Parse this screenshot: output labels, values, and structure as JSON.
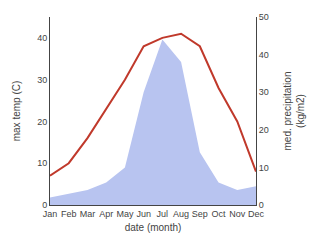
{
  "chart_data": {
    "type": "line",
    "categories": [
      "Jan",
      "Feb",
      "Mar",
      "Apr",
      "May",
      "Jun",
      "Jul",
      "Aug",
      "Sep",
      "Oct",
      "Nov",
      "Dec"
    ],
    "series": [
      {
        "type": "line",
        "color": "#c0392b",
        "values": [
          7,
          10,
          16,
          23,
          30,
          38,
          40,
          41,
          38,
          28,
          20,
          8
        ]
      },
      {
        "type": "area",
        "color": "#b8c4f0",
        "axis": "y2",
        "values": [
          2,
          3,
          4,
          6,
          10,
          30,
          44,
          38,
          14,
          6,
          4,
          5
        ]
      }
    ],
    "xlabel": "date (month)",
    "ylabel": "max temp (C)",
    "y2label": "med. precipitation\n(kg/m2)",
    "ylim": [
      0,
      45
    ],
    "yticks": [
      0,
      10,
      20,
      30,
      40
    ],
    "y2lim": [
      0,
      50
    ],
    "y2ticks": [
      0,
      10,
      20,
      30,
      40,
      50
    ],
    "grid": false
  }
}
